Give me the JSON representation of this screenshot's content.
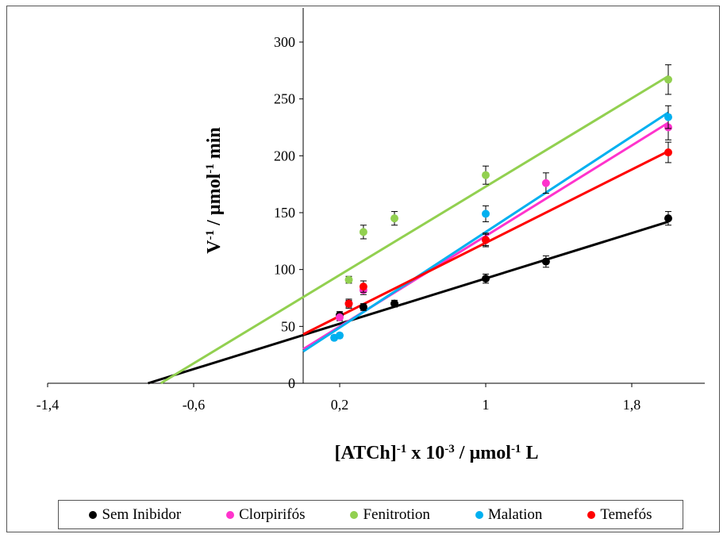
{
  "chart_data": {
    "type": "scatter",
    "title": "",
    "xlabel": "[ATCh]-1 x 10-3 / µmol-1 L",
    "ylabel": "V-1 / µmol-1 min",
    "xlabel_parts": {
      "pre": "[ATCh]",
      "sup1": "-1",
      "mid": " x 10",
      "sup2": "-3",
      "post": " / µmol",
      "sup3": "-1",
      "end": " L"
    },
    "ylabel_parts": {
      "pre": "V",
      "sup1": "-1",
      "mid": " / µmol",
      "sup2": "-1",
      "end": " min"
    },
    "xlim": [
      -1.4,
      2.2
    ],
    "ylim": [
      0,
      300
    ],
    "x_ticks": [
      -1.4,
      -0.6,
      0.2,
      1,
      1.8
    ],
    "x_tick_labels": [
      "-1,4",
      "-0,6",
      "0,2",
      "1",
      "1,8"
    ],
    "y_ticks": [
      0,
      50,
      100,
      150,
      200,
      250,
      300
    ],
    "y_tick_labels": [
      "0",
      "50",
      "100",
      "150",
      "200",
      "250",
      "300"
    ],
    "grid": false,
    "legend_position": "bottom",
    "series": [
      {
        "name": "Sem Inibidor",
        "color": "#000000",
        "points": [
          [
            0.2,
            60
          ],
          [
            0.33,
            67
          ],
          [
            0.5,
            70
          ],
          [
            1.0,
            92
          ],
          [
            1.33,
            107
          ],
          [
            2.0,
            145
          ]
        ],
        "errors": [
          3,
          3,
          3,
          4,
          5,
          6
        ],
        "fit": [
          [
            -0.85,
            0
          ],
          [
            2.0,
            142
          ]
        ]
      },
      {
        "name": "Clorpirifós",
        "color": "#ff33cc",
        "points": [
          [
            0.2,
            58
          ],
          [
            0.25,
            70
          ],
          [
            0.33,
            82
          ],
          [
            1.0,
            126
          ],
          [
            1.33,
            176
          ],
          [
            2.0,
            225
          ]
        ],
        "errors": [
          3,
          4,
          4,
          5,
          9,
          11
        ],
        "fit": [
          [
            0.0,
            30
          ],
          [
            2.0,
            229
          ]
        ]
      },
      {
        "name": "Fenitrotion",
        "color": "#92d050",
        "points": [
          [
            0.25,
            91
          ],
          [
            0.33,
            133
          ],
          [
            0.5,
            145
          ],
          [
            1.0,
            183
          ],
          [
            2.0,
            267
          ]
        ],
        "errors": [
          3,
          6,
          6,
          8,
          13
        ],
        "fit": [
          [
            -0.78,
            0
          ],
          [
            2.0,
            270
          ]
        ]
      },
      {
        "name": "Malation",
        "color": "#00b0f0",
        "points": [
          [
            0.17,
            40
          ],
          [
            0.2,
            42
          ],
          [
            1.0,
            149
          ],
          [
            2.0,
            234
          ]
        ],
        "errors": [
          2,
          2,
          7,
          10
        ],
        "fit": [
          [
            0.0,
            28
          ],
          [
            2.0,
            238
          ]
        ]
      },
      {
        "name": "Temefós",
        "color": "#ff0000",
        "points": [
          [
            0.25,
            70
          ],
          [
            0.33,
            85
          ],
          [
            1.0,
            126
          ],
          [
            2.0,
            203
          ]
        ],
        "errors": [
          3,
          5,
          6,
          9
        ],
        "fit": [
          [
            0.0,
            43
          ],
          [
            2.0,
            204
          ]
        ]
      }
    ]
  },
  "legend": {
    "items": [
      {
        "label": "Sem Inibidor",
        "color": "#000000"
      },
      {
        "label": "Clorpirifós",
        "color": "#ff33cc"
      },
      {
        "label": "Fenitrotion",
        "color": "#92d050"
      },
      {
        "label": "Malation",
        "color": "#00b0f0"
      },
      {
        "label": "Temefós",
        "color": "#ff0000"
      }
    ]
  }
}
